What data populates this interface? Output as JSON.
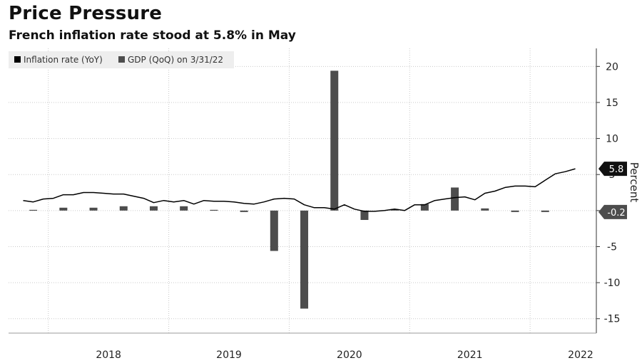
{
  "header": {
    "title": "Price Pressure",
    "subtitle": "French inflation rate stood at 5.8% in May"
  },
  "chart_data": {
    "type": "bar+line",
    "title": "Price Pressure",
    "subtitle": "French inflation rate stood at 5.8% in May",
    "ylabel": "Percent",
    "ylim": [
      -17,
      22.5
    ],
    "yticks": [
      20,
      15,
      10,
      5,
      0,
      -5,
      -10,
      -15
    ],
    "ytick_labels": [
      "20",
      "15",
      "10",
      "5",
      "0",
      "-5",
      "-10",
      "-15"
    ],
    "xticks": [
      "2018",
      "2019",
      "2020",
      "2021",
      "2022"
    ],
    "grid": true,
    "legend_position": "top-left",
    "colors": {
      "line": "#000000",
      "bar": "#4d4d4d",
      "tag": "#111111",
      "tag_neg": "#4d4d4d"
    },
    "last_value_tags": [
      {
        "label": "5.8",
        "value": 5.8
      },
      {
        "label": "-0.2",
        "value": -0.2
      }
    ],
    "series": [
      {
        "name": "Inflation rate (YoY)",
        "type": "line",
        "x": [
          "2017-10",
          "2017-11",
          "2017-12",
          "2018-01",
          "2018-02",
          "2018-03",
          "2018-04",
          "2018-05",
          "2018-06",
          "2018-07",
          "2018-08",
          "2018-09",
          "2018-10",
          "2018-11",
          "2018-12",
          "2019-01",
          "2019-02",
          "2019-03",
          "2019-04",
          "2019-05",
          "2019-06",
          "2019-07",
          "2019-08",
          "2019-09",
          "2019-10",
          "2019-11",
          "2019-12",
          "2020-01",
          "2020-02",
          "2020-03",
          "2020-04",
          "2020-05",
          "2020-06",
          "2020-07",
          "2020-08",
          "2020-09",
          "2020-10",
          "2020-11",
          "2020-12",
          "2021-01",
          "2021-02",
          "2021-03",
          "2021-04",
          "2021-05",
          "2021-06",
          "2021-07",
          "2021-08",
          "2021-09",
          "2021-10",
          "2021-11",
          "2021-12",
          "2022-01",
          "2022-02",
          "2022-03",
          "2022-04",
          "2022-05"
        ],
        "values": [
          1.4,
          1.2,
          1.6,
          1.7,
          2.2,
          2.2,
          2.5,
          2.5,
          2.4,
          2.3,
          2.3,
          2.0,
          1.7,
          1.1,
          1.4,
          1.2,
          1.4,
          0.9,
          1.4,
          1.3,
          1.3,
          1.2,
          1.0,
          0.9,
          1.2,
          1.6,
          1.7,
          1.6,
          0.8,
          0.4,
          0.4,
          0.2,
          0.8,
          0.2,
          -0.1,
          -0.1,
          0.0,
          0.2,
          0.0,
          0.8,
          0.8,
          1.4,
          1.6,
          1.8,
          1.9,
          1.5,
          2.4,
          2.7,
          3.2,
          3.4,
          3.4,
          3.3,
          4.2,
          5.1,
          5.4,
          5.8
        ]
      },
      {
        "name": "GDP (QoQ) on 3/31/22",
        "type": "bar",
        "x": [
          "2017-Q4",
          "2018-Q1",
          "2018-Q2",
          "2018-Q3",
          "2018-Q4",
          "2019-Q1",
          "2019-Q2",
          "2019-Q3",
          "2019-Q4",
          "2020-Q1",
          "2020-Q2",
          "2020-Q3",
          "2020-Q4",
          "2021-Q1",
          "2021-Q2",
          "2021-Q3",
          "2021-Q4",
          "2022-Q1"
        ],
        "values": [
          0.1,
          0.4,
          0.4,
          0.6,
          0.6,
          0.6,
          0.1,
          -0.2,
          -5.6,
          -13.6,
          19.4,
          -1.3,
          0.2,
          0.9,
          3.2,
          0.3,
          -0.2,
          -0.2
        ]
      }
    ]
  }
}
